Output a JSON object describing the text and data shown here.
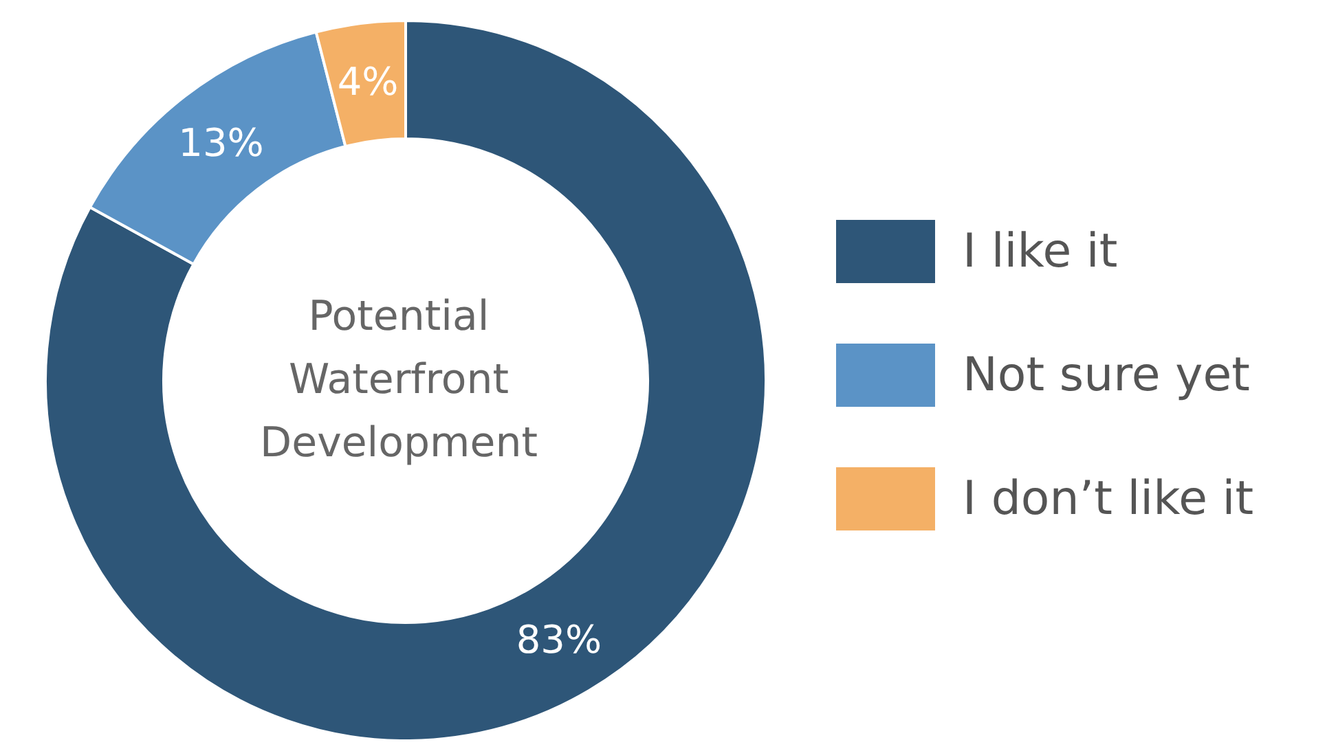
{
  "chart_data": {
    "type": "donut",
    "title": "Potential Waterfront Development",
    "categories": [
      "I like it",
      "Not sure yet",
      "I don’t like it"
    ],
    "values": [
      83,
      13,
      4
    ],
    "colors": [
      "#2e5678",
      "#5b93c6",
      "#f4b066"
    ],
    "value_labels": [
      "83%",
      "13%",
      "4%"
    ],
    "legend": "right"
  }
}
